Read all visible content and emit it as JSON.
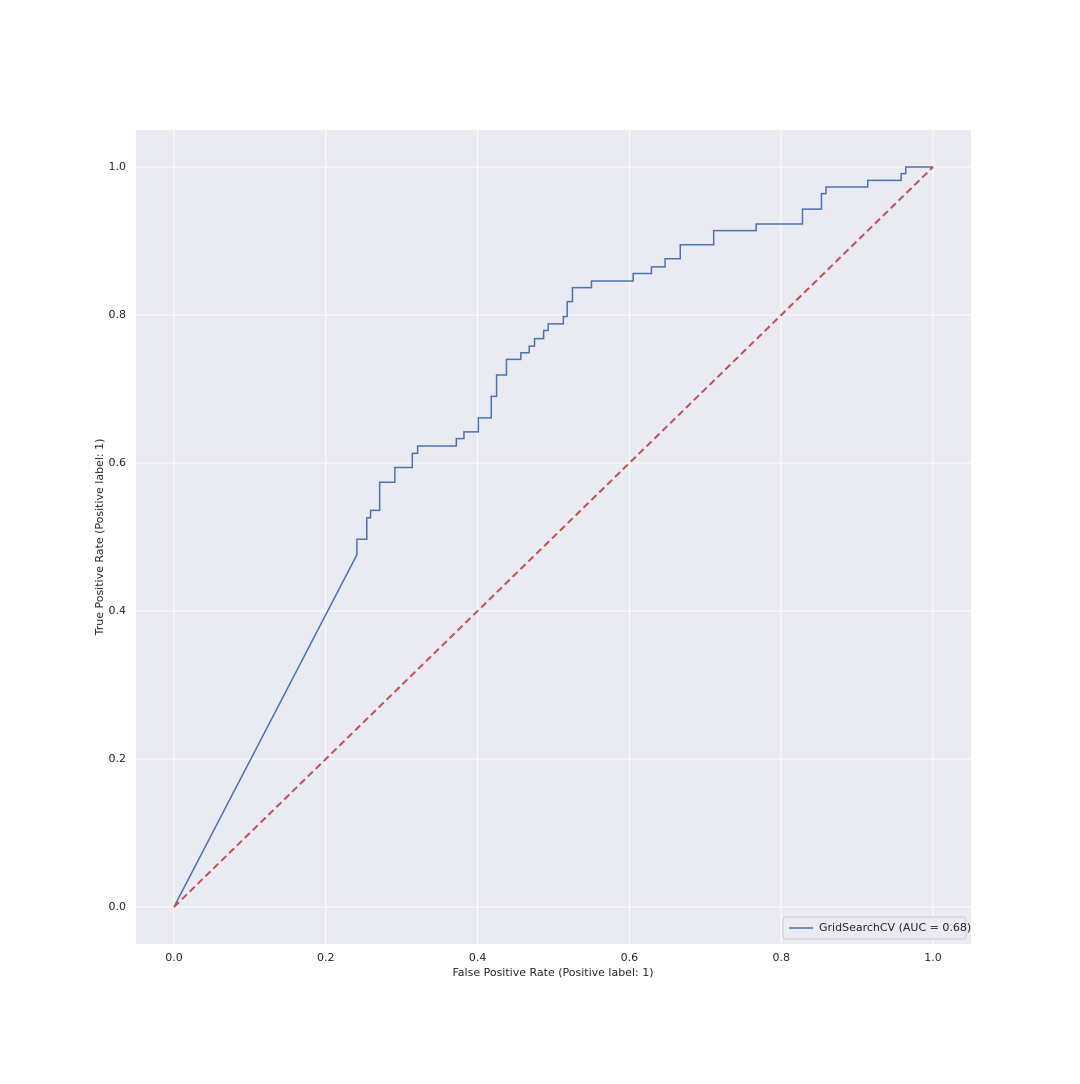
{
  "chart_data": {
    "type": "line",
    "xlabel": "False Positive Rate (Positive label: 1)",
    "ylabel": "True Positive Rate (Positive label: 1)",
    "xlim": [
      -0.05,
      1.05
    ],
    "ylim": [
      -0.05,
      1.05
    ],
    "xticks": [
      {
        "value": 0,
        "label": "0.0"
      },
      {
        "value": 0.2,
        "label": "0.2"
      },
      {
        "value": 0.4,
        "label": "0.4"
      },
      {
        "value": 0.6,
        "label": "0.6"
      },
      {
        "value": 0.8,
        "label": "0.8"
      },
      {
        "value": 1,
        "label": "1.0"
      }
    ],
    "yticks": [
      {
        "value": 0,
        "label": "0.0"
      },
      {
        "value": 0.2,
        "label": "0.2"
      },
      {
        "value": 0.4,
        "label": "0.4"
      },
      {
        "value": 0.6,
        "label": "0.6"
      },
      {
        "value": 0.8,
        "label": "0.8"
      },
      {
        "value": 1,
        "label": "1.0"
      }
    ],
    "grid": true,
    "legend": "lower right",
    "series": [
      {
        "name": "GridSearchCV (AUC = 0.68)",
        "color": "#4c72b0",
        "x": [
          0,
          0.241,
          0.241,
          0.254,
          0.254,
          0.259,
          0.259,
          0.271,
          0.271,
          0.291,
          0.291,
          0.314,
          0.314,
          0.321,
          0.321,
          0.372,
          0.372,
          0.382,
          0.382,
          0.401,
          0.401,
          0.418,
          0.418,
          0.425,
          0.425,
          0.438,
          0.438,
          0.457,
          0.457,
          0.468,
          0.468,
          0.475,
          0.475,
          0.487,
          0.487,
          0.493,
          0.493,
          0.513,
          0.513,
          0.518,
          0.518,
          0.525,
          0.525,
          0.55,
          0.55,
          0.605,
          0.605,
          0.629,
          0.629,
          0.647,
          0.647,
          0.667,
          0.667,
          0.711,
          0.711,
          0.767,
          0.767,
          0.828,
          0.828,
          0.853,
          0.853,
          0.859,
          0.859,
          0.914,
          0.914,
          0.958,
          0.958,
          0.964,
          0.964,
          1.0
        ],
        "values": [
          0,
          0.476,
          0.497,
          0.497,
          0.526,
          0.526,
          0.536,
          0.536,
          0.574,
          0.574,
          0.594,
          0.594,
          0.613,
          0.613,
          0.623,
          0.623,
          0.633,
          0.633,
          0.642,
          0.642,
          0.661,
          0.661,
          0.69,
          0.69,
          0.719,
          0.719,
          0.74,
          0.74,
          0.749,
          0.749,
          0.758,
          0.758,
          0.768,
          0.768,
          0.779,
          0.779,
          0.788,
          0.788,
          0.798,
          0.798,
          0.818,
          0.818,
          0.837,
          0.837,
          0.846,
          0.846,
          0.856,
          0.856,
          0.865,
          0.865,
          0.876,
          0.876,
          0.895,
          0.895,
          0.914,
          0.914,
          0.923,
          0.923,
          0.943,
          0.943,
          0.964,
          0.964,
          0.973,
          0.973,
          0.982,
          0.982,
          0.991,
          0.991,
          1.0,
          1.0
        ]
      },
      {
        "color": "#c44e52",
        "dashed": true,
        "x": [
          0,
          1
        ],
        "values": [
          0,
          1
        ]
      }
    ]
  }
}
